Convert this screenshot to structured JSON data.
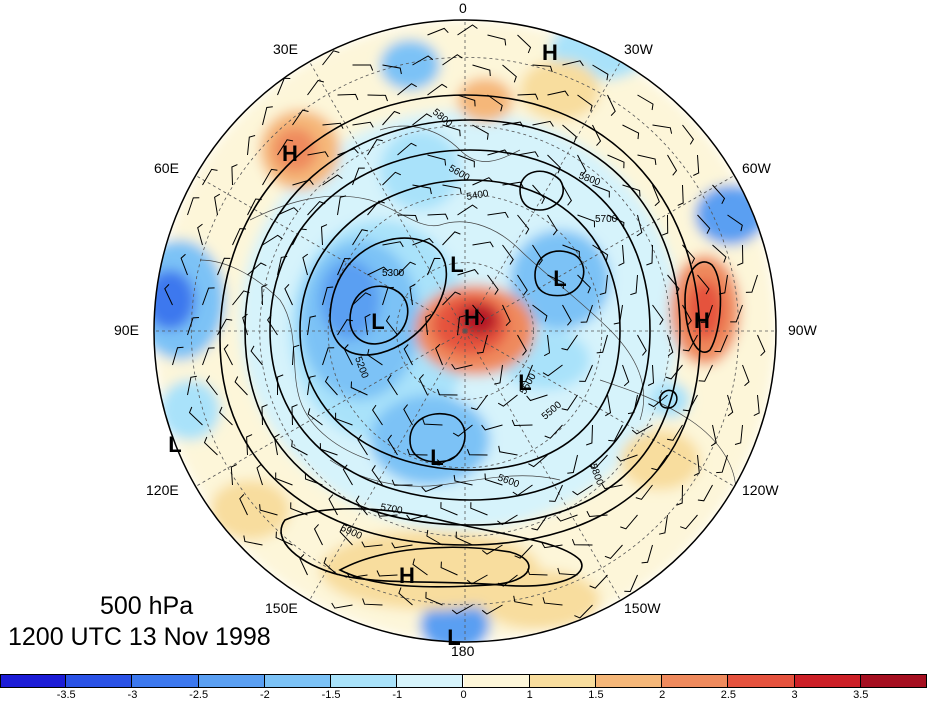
{
  "caption": {
    "level": "500 hPa",
    "time": "1200 UTC 13 Nov 1998"
  },
  "longitude_labels": {
    "lon_0": "0",
    "lon_30w": "30W",
    "lon_60w": "60W",
    "lon_90w": "90W",
    "lon_120w": "120W",
    "lon_150w": "150W",
    "lon_180": "180",
    "lon_150e": "150E",
    "lon_120e": "120E",
    "lon_90e": "90E",
    "lon_60e": "60E",
    "lon_30e": "30E"
  },
  "pressure_centers": [
    {
      "label": "H",
      "region": "north pole"
    },
    {
      "label": "H",
      "region": "north atlantic"
    },
    {
      "label": "H",
      "region": "western russia"
    },
    {
      "label": "H",
      "region": "western north america"
    },
    {
      "label": "H",
      "region": "north pacific"
    },
    {
      "label": "L",
      "region": "siberia"
    },
    {
      "label": "L",
      "region": "eastern siberia"
    },
    {
      "label": "L",
      "region": "northern canada"
    },
    {
      "label": "L",
      "region": "hudson bay"
    },
    {
      "label": "L",
      "region": "arctic"
    },
    {
      "label": "L",
      "region": "east asia"
    },
    {
      "label": "L",
      "region": "pacific"
    }
  ],
  "contour_labels": [
    "5800",
    "5600",
    "5400",
    "5700",
    "5300",
    "5200",
    "5500",
    "5600",
    "5700",
    "5800",
    "5900",
    "5500",
    "5800"
  ],
  "colorbar": {
    "ticks": [
      "-3.5",
      "-3",
      "-2.5",
      "-2",
      "-1.5",
      "-1",
      "0",
      "1",
      "1.5",
      "2",
      "2.5",
      "3",
      "3.5"
    ],
    "colors": [
      "#1c1cd6",
      "#2a52e6",
      "#3c78ee",
      "#5a9ff2",
      "#7cc2f6",
      "#a9e2fa",
      "#d6f3fb",
      "#fdf6d9",
      "#f8dd9e",
      "#f5b779",
      "#ef8a5d",
      "#e5523e",
      "#cc1f27",
      "#a50f20"
    ]
  },
  "anomaly_colors": {
    "strong_positive": "#b51826",
    "positive": "#ef8a5d",
    "weak_positive": "#f8dd9e",
    "neutral": "#fdf6d9",
    "weak_negative": "#d6f3fb",
    "negative": "#7cc2f6",
    "strong_negative": "#3c78ee"
  }
}
